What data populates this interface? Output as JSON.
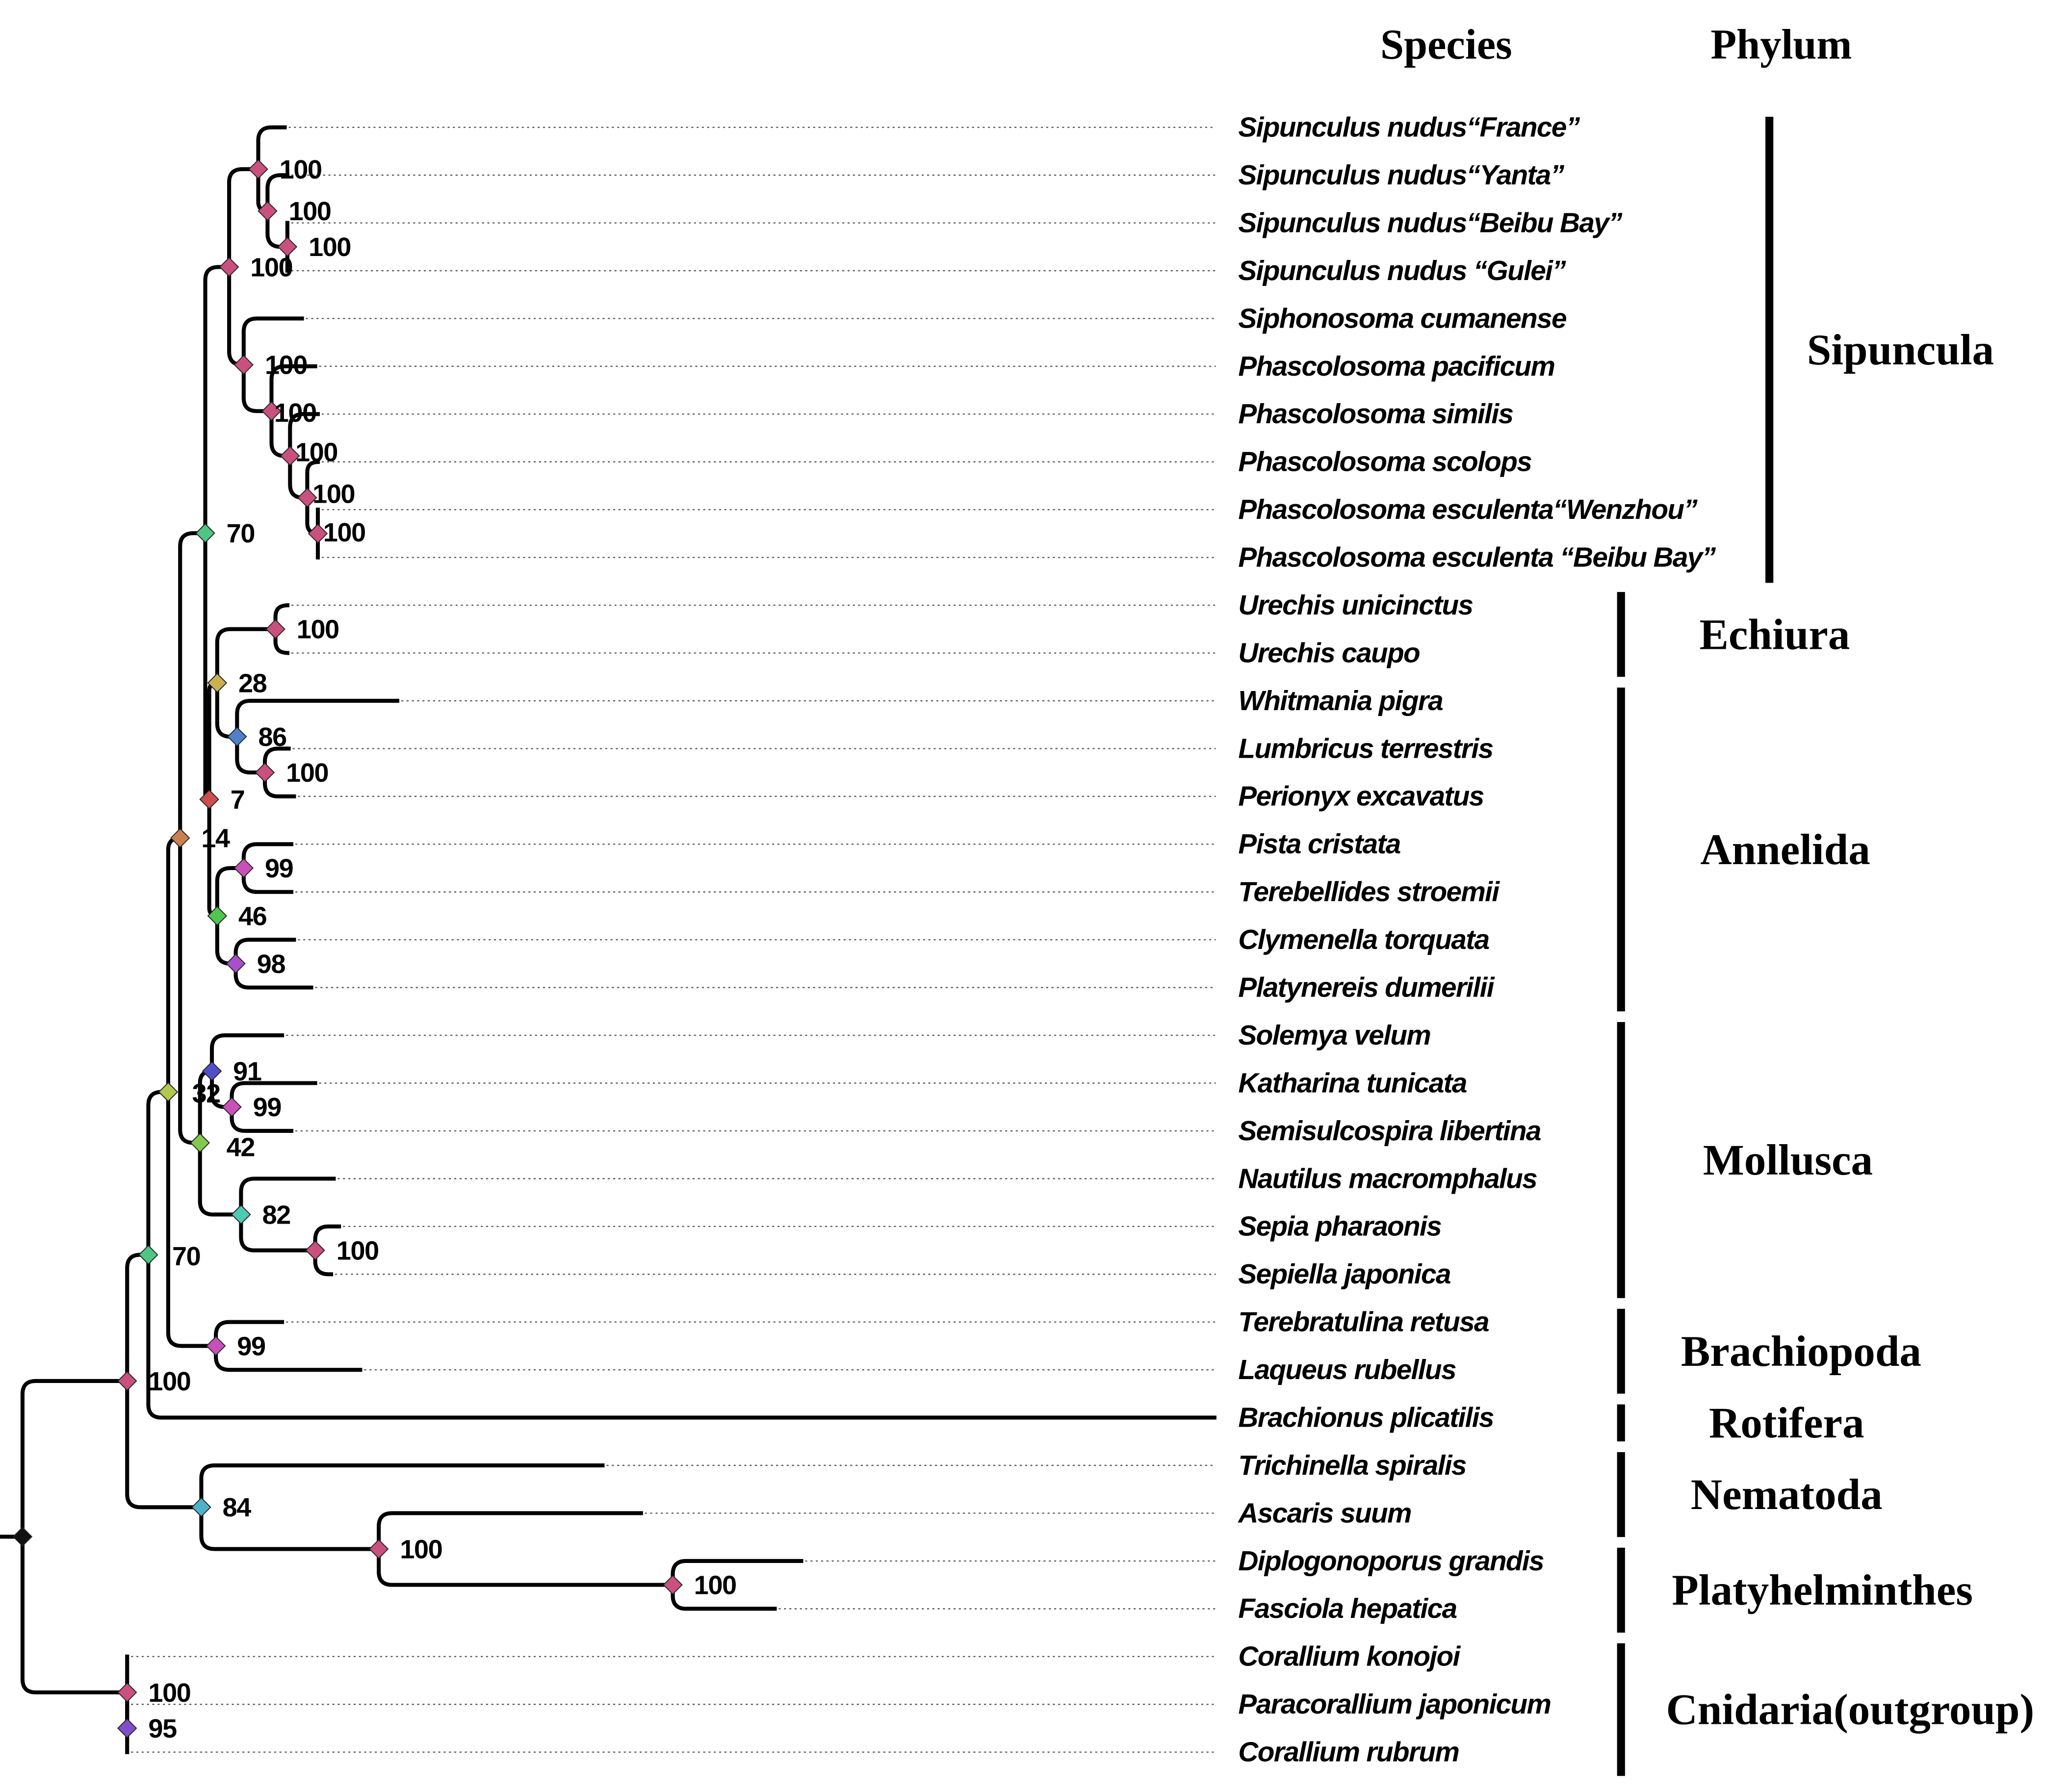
{
  "headers": {
    "species": "Species",
    "phylum": "Phylum"
  },
  "taxa": [
    "Sipunculus nudus“France”",
    "Sipunculus nudus“Yanta”",
    "Sipunculus nudus“Beibu Bay”",
    "Sipunculus nudus “Gulei”",
    "Siphonosoma cumanense",
    "Phascolosoma pacificum",
    "Phascolosoma similis",
    "Phascolosoma scolops",
    "Phascolosoma esculenta“Wenzhou”",
    "Phascolosoma esculenta “Beibu Bay”",
    "Urechis unicinctus",
    "Urechis caupo",
    "Whitmania pigra",
    "Lumbricus terrestris",
    "Perionyx excavatus",
    "Pista cristata",
    "Terebellides stroemii",
    "Clymenella torquata",
    "Platynereis dumerilii",
    "Solemya velum",
    "Katharina tunicata",
    "Semisulcospira libertina",
    "Nautilus macromphalus",
    "Sepia pharaonis",
    "Sepiella japonica",
    "Terebratulina retusa",
    "Laqueus rubellus",
    "Brachionus plicatilis",
    "Trichinella spiralis",
    "Ascaris suum",
    "Diplogonoporus grandis",
    "Fasciola hepatica",
    "Corallium konojoi",
    "Paracorallium japonicum",
    "Corallium rubrum"
  ],
  "phyla": [
    {
      "name": "Sipuncula",
      "first_taxon": 0,
      "last_taxon": 9
    },
    {
      "name": "Echiura",
      "first_taxon": 10,
      "last_taxon": 11
    },
    {
      "name": "Annelida",
      "first_taxon": 12,
      "last_taxon": 18
    },
    {
      "name": "Mollusca",
      "first_taxon": 19,
      "last_taxon": 24
    },
    {
      "name": "Brachiopoda",
      "first_taxon": 25,
      "last_taxon": 26
    },
    {
      "name": "Rotifera",
      "first_taxon": 27,
      "last_taxon": 27
    },
    {
      "name": "Nematoda",
      "first_taxon": 28,
      "last_taxon": 29
    },
    {
      "name": "Platyhelminthes",
      "first_taxon": 30,
      "last_taxon": 31
    },
    {
      "name": "Cnidaria(outgroup)",
      "first_taxon": 32,
      "last_taxon": 34
    }
  ],
  "nodes": [
    {
      "support": "100",
      "color": "#c9507f"
    },
    {
      "support": "100",
      "color": "#c9507f"
    },
    {
      "support": "100",
      "color": "#c9507f"
    },
    {
      "support": "100",
      "color": "#c9507f"
    },
    {
      "support": "100",
      "color": "#c9507f"
    },
    {
      "support": "100",
      "color": "#c9507f"
    },
    {
      "support": "100",
      "color": "#c9507f"
    },
    {
      "support": "100",
      "color": "#c9507f"
    },
    {
      "support": "100",
      "color": "#c9507f"
    },
    {
      "support": "70",
      "color": "#4fc681"
    },
    {
      "support": "7",
      "color": "#cc4f4f"
    },
    {
      "support": "28",
      "color": "#c9b14f"
    },
    {
      "support": "100",
      "color": "#c9507f"
    },
    {
      "support": "86",
      "color": "#4f80c9"
    },
    {
      "support": "100",
      "color": "#c9507f"
    },
    {
      "support": "46",
      "color": "#4fc64f"
    },
    {
      "support": "99",
      "color": "#c950b8"
    },
    {
      "support": "98",
      "color": "#a94fc9"
    },
    {
      "support": "14",
      "color": "#c9814f"
    },
    {
      "support": "42",
      "color": "#81c94f"
    },
    {
      "support": "91",
      "color": "#4f4fc9"
    },
    {
      "support": "99",
      "color": "#c950b8"
    },
    {
      "support": "82",
      "color": "#4fc9b1"
    },
    {
      "support": "100",
      "color": "#c9507f"
    },
    {
      "support": "32",
      "color": "#b1c94f"
    },
    {
      "support": "99",
      "color": "#c950b8"
    },
    {
      "support": "70",
      "color": "#4fc681"
    },
    {
      "support": "100",
      "color": "#c9507f"
    },
    {
      "support": "84",
      "color": "#4fb1c9"
    },
    {
      "support": "100",
      "color": "#c9507f"
    },
    {
      "support": "100",
      "color": "#c9507f"
    },
    {
      "support": "100",
      "color": "#c9507f"
    },
    {
      "support": "95",
      "color": "#814fc9"
    },
    {
      "support": "",
      "color": "#111111"
    }
  ]
}
